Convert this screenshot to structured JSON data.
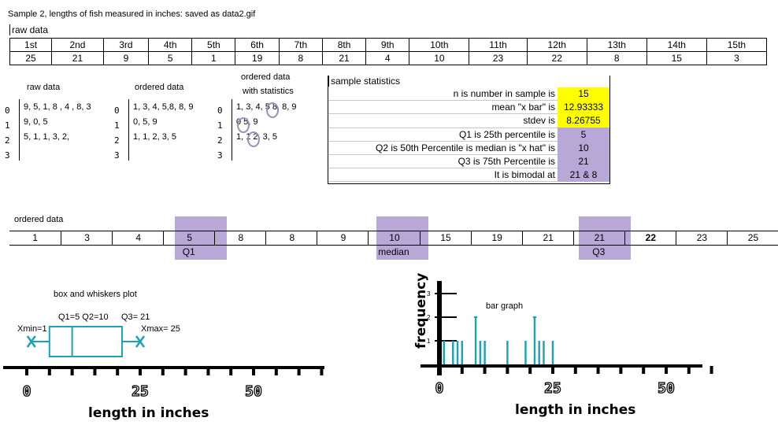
{
  "header": {
    "title": "Sample 2, lengths of fish measured in inches: saved as data2.gif"
  },
  "raw": {
    "label": "raw data",
    "positions": [
      "1st",
      "2nd",
      "3rd",
      "4th",
      "5th",
      "6th",
      "7th",
      "8th",
      "9th",
      "10th",
      "11th",
      "12th",
      "13th",
      "14th",
      "15th"
    ],
    "values": [
      "25",
      "21",
      "9",
      "5",
      "1",
      "19",
      "8",
      "21",
      "4",
      "10",
      "23",
      "22",
      "8",
      "15",
      "3"
    ]
  },
  "stemplots": [
    {
      "title": "raw data",
      "stems": [
        "0",
        "1",
        "2",
        "3"
      ],
      "leaves": [
        "9, 5, 1, 8 , 4 , 8, 3",
        "9, 0, 5",
        "5, 1, 1, 3, 2,",
        ""
      ]
    },
    {
      "title": "ordered data",
      "stems": [
        "0",
        "1",
        "2",
        "3"
      ],
      "leaves": [
        "1, 3, 4, 5,8, 8, 9",
        "0, 5, 9",
        "1, 1, 2, 3, 5",
        ""
      ]
    },
    {
      "title": "ordered data",
      "title2": "with statistics",
      "stems": [
        "0",
        "1",
        "2",
        "3"
      ],
      "leaves": [
        "1, 3, 4, 5 8, 8, 9",
        "0 5, 9",
        "1, 1 2, 3, 5",
        ""
      ]
    }
  ],
  "stats": {
    "title": "sample statistics",
    "rows": [
      {
        "label": "n is number in sample is",
        "value": "15",
        "color": "yellow"
      },
      {
        "label": "mean \"x bar\" is",
        "value": "12.93333",
        "color": "yellow"
      },
      {
        "label": "stdev is",
        "value": "8.26755",
        "color": "yellow"
      },
      {
        "label": "Q1 is 25th percentile is",
        "value": "5",
        "color": "purple"
      },
      {
        "label": "Q2 is 50th Percentile  is median is \"x hat\" is",
        "value": "10",
        "color": "purple"
      },
      {
        "label": "Q3 is 75th Percentile  is",
        "value": "21",
        "color": "purple"
      },
      {
        "label": "It is bimodal at",
        "value": "21 & 8",
        "color": "purple"
      }
    ]
  },
  "ordered": {
    "label": "ordered data",
    "values": [
      "1",
      "3",
      "4",
      "5",
      "8",
      "8",
      "9",
      "10",
      "15",
      "19",
      "21",
      "21",
      "22",
      "23",
      "25"
    ],
    "highlight": [
      3,
      7,
      11
    ],
    "under": {
      "3": "Q1",
      "7": "median",
      "11": "Q3"
    }
  },
  "boxplot": {
    "title": "box and whiskers plot",
    "labels": {
      "q": "Q1=5 Q2=10",
      "q3": "Q3= 21",
      "xmin": "Xmin=1",
      "xmax": "Xmax= 25"
    },
    "values": {
      "min": 1,
      "q1": 5,
      "median": 10,
      "q3": 21,
      "max": 25
    },
    "axis_ticks": [
      "0",
      "25",
      "50"
    ],
    "xlabel": "length in inches",
    "color": "#1aa3b8"
  },
  "chart_data": {
    "type": "bar",
    "title": "bar graph",
    "ylabel": "frequency",
    "xlabel": "length in inches",
    "x_tick_labels": [
      "0",
      "25",
      "50"
    ],
    "y_tick_labels": [
      "1",
      "2",
      "3"
    ],
    "x": [
      1,
      3,
      4,
      5,
      8,
      9,
      10,
      15,
      19,
      21,
      22,
      23,
      25
    ],
    "values": [
      1,
      1,
      1,
      1,
      2,
      1,
      1,
      1,
      1,
      2,
      1,
      1,
      1
    ],
    "xlim": [
      0,
      60
    ],
    "ylim": [
      0,
      3
    ],
    "color": "#1aa3b8"
  }
}
